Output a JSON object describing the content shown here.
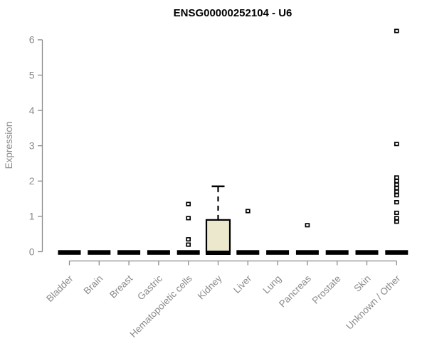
{
  "chart_data": {
    "type": "boxplot",
    "title": "ENSG00000252104 - U6",
    "ylabel": "Expression",
    "xlabel": "",
    "ylim": [
      0,
      6.4
    ],
    "yticks": [
      0,
      1,
      2,
      3,
      4,
      5,
      6
    ],
    "grid": false,
    "legend": false,
    "categories": [
      "Bladder",
      "Brain",
      "Breast",
      "Gastric",
      "Hematopoietic cells",
      "Kidney",
      "Liver",
      "Lung",
      "Pancreas",
      "Prostate",
      "Skin",
      "Unknown / Other"
    ],
    "series": [
      {
        "name": "Bladder",
        "low": 0,
        "q1": 0,
        "median": 0,
        "q3": 0,
        "high": 0,
        "outliers": []
      },
      {
        "name": "Brain",
        "low": 0,
        "q1": 0,
        "median": 0,
        "q3": 0,
        "high": 0,
        "outliers": []
      },
      {
        "name": "Breast",
        "low": 0,
        "q1": 0,
        "median": 0,
        "q3": 0,
        "high": 0,
        "outliers": []
      },
      {
        "name": "Gastric",
        "low": 0,
        "q1": 0,
        "median": 0,
        "q3": 0,
        "high": 0,
        "outliers": []
      },
      {
        "name": "Hematopoietic cells",
        "low": 0,
        "q1": 0,
        "median": 0,
        "q3": 0,
        "high": 0,
        "outliers": [
          0.2,
          0.35,
          0.95,
          1.35
        ]
      },
      {
        "name": "Kidney",
        "low": 0,
        "q1": 0,
        "median": 0,
        "q3": 0.9,
        "high": 1.85,
        "outliers": []
      },
      {
        "name": "Liver",
        "low": 0,
        "q1": 0,
        "median": 0,
        "q3": 0,
        "high": 0,
        "outliers": [
          1.15
        ]
      },
      {
        "name": "Lung",
        "low": 0,
        "q1": 0,
        "median": 0,
        "q3": 0,
        "high": 0,
        "outliers": []
      },
      {
        "name": "Pancreas",
        "low": 0,
        "q1": 0,
        "median": 0,
        "q3": 0,
        "high": 0,
        "outliers": [
          0.75
        ]
      },
      {
        "name": "Prostate",
        "low": 0,
        "q1": 0,
        "median": 0,
        "q3": 0,
        "high": 0,
        "outliers": []
      },
      {
        "name": "Skin",
        "low": 0,
        "q1": 0,
        "median": 0,
        "q3": 0,
        "high": 0,
        "outliers": []
      },
      {
        "name": "Unknown / Other",
        "low": 0,
        "q1": 0,
        "median": 0,
        "q3": 0,
        "high": 0,
        "outliers": [
          0.85,
          0.95,
          1.1,
          1.4,
          1.6,
          1.7,
          1.8,
          1.9,
          2.0,
          2.1,
          3.05,
          6.25
        ]
      }
    ],
    "colors": {
      "box_fill": "#ECE8CD",
      "box_stroke": "#000000",
      "flat_bar": "#000000",
      "outlier_fill": "#FFFFFF",
      "outlier_stroke": "#000000",
      "axis": "#8A8A8A",
      "tick_text": "#8A8A8A",
      "title_text": "#000000"
    }
  }
}
